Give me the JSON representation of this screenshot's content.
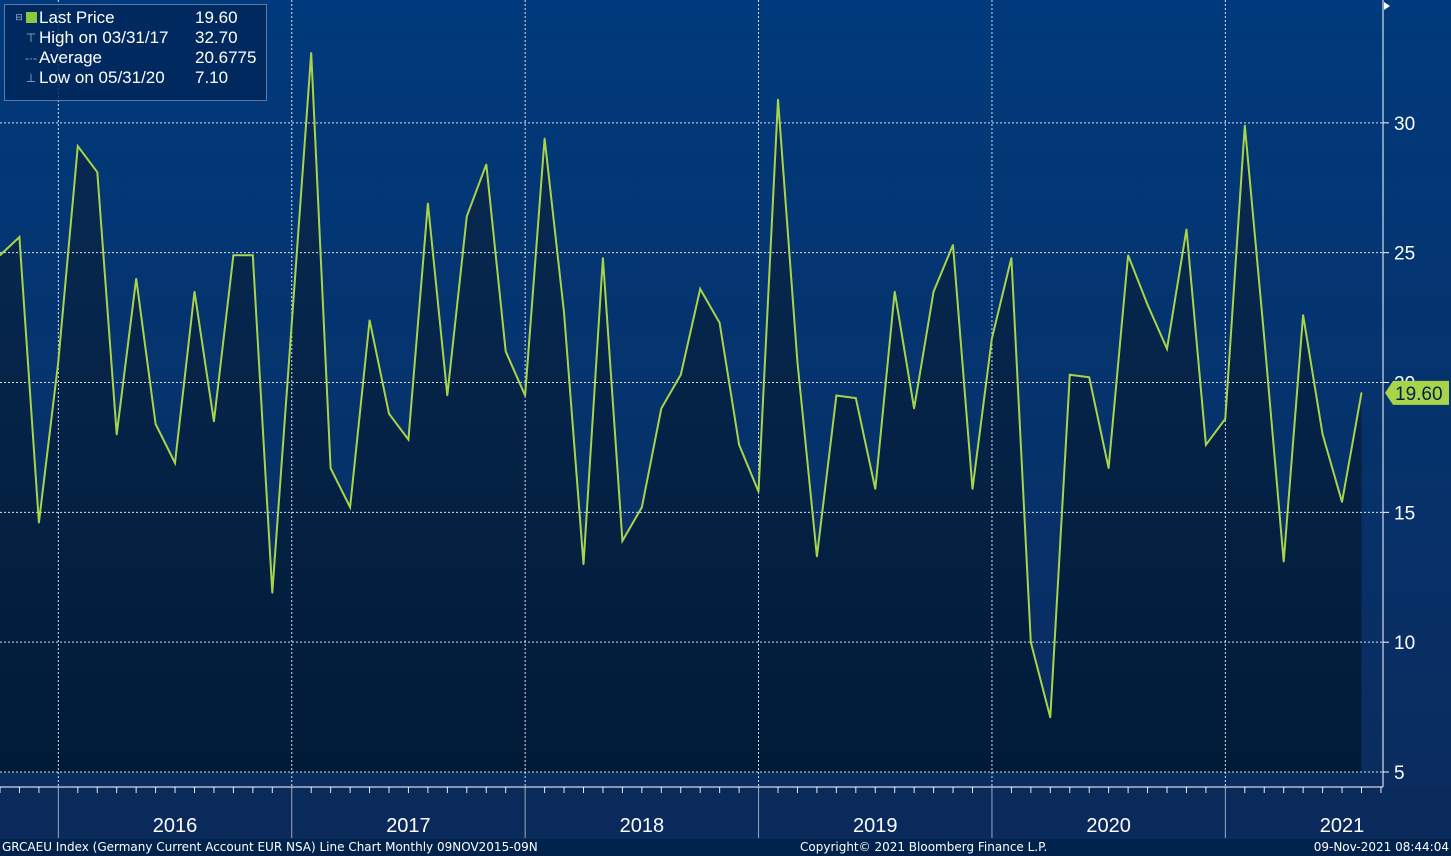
{
  "colors": {
    "background_top": "#003a7a",
    "background_bottom": "#0a2a5c",
    "fill": "#00203f",
    "line": "#a8d44a",
    "grid": "#ffffff",
    "price_tag": "#a8d44a"
  },
  "legend": {
    "last_price_label": "Last Price",
    "last_price_value": "19.60",
    "high_label": "High on 03/31/17",
    "high_value": "32.70",
    "average_label": "Average",
    "average_value": "20.6775",
    "low_label": "Low on 05/31/20",
    "low_value": "7.10"
  },
  "price_tag": "19.60",
  "footer": {
    "left": "GRCAEU Index (Germany Current Account EUR NSA) Line Chart  Monthly 09NOV2015-09N",
    "center": "Copyright© 2021 Bloomberg Finance L.P.",
    "right": "09-Nov-2021 08:44:04"
  },
  "chart_data": {
    "type": "area",
    "frequency": "monthly",
    "x_start": "2015-10",
    "x_end": "2021-09",
    "ylim": [
      4.5,
      34.5
    ],
    "y_ticks": [
      "5",
      "10",
      "15",
      "20",
      "25",
      "30"
    ],
    "year_labels": [
      "2016",
      "2017",
      "2018",
      "2019",
      "2020",
      "2021"
    ],
    "grid": true,
    "series": [
      {
        "values": [
          24.9,
          25.6,
          14.6,
          20.8,
          29.1,
          28.1,
          18.0,
          24.0,
          18.4,
          16.9,
          23.5,
          18.5,
          24.9,
          24.9,
          11.9,
          22.3,
          32.7,
          16.7,
          15.2,
          22.4,
          18.8,
          17.8,
          26.9,
          19.5,
          26.4,
          28.4,
          21.2,
          19.5,
          29.4,
          22.7,
          13.0,
          24.8,
          13.9,
          15.2,
          19.0,
          20.3,
          23.6,
          22.3,
          17.6,
          15.8,
          30.9,
          20.8,
          13.3,
          19.5,
          19.4,
          15.9,
          23.5,
          19.0,
          23.5,
          25.3,
          15.9,
          21.7,
          24.8,
          10.0,
          7.1,
          20.3,
          20.2,
          16.7,
          24.9,
          23.0,
          21.3,
          25.9,
          17.6,
          18.6,
          29.9,
          21.7,
          13.1,
          22.6,
          18.0,
          15.4,
          19.6
        ]
      }
    ]
  }
}
